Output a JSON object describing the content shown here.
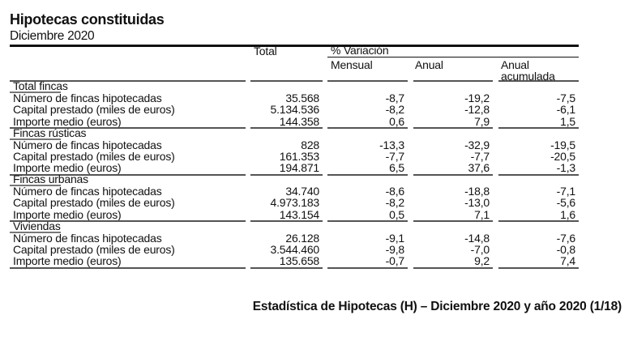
{
  "title": "Hipotecas constituidas",
  "subtitle": "Diciembre 2020",
  "headers": {
    "total": "Total",
    "variacion": "% Variación",
    "mensual": "Mensual",
    "anual": "Anual",
    "anual_acumulada_1": "Anual",
    "anual_acumulada_2": "acumulada"
  },
  "sections": [
    {
      "name": "Total fincas",
      "rows": [
        {
          "label": "Número de fincas hipotecadas",
          "total": "35.568",
          "mensual": "-8,7",
          "anual": "-19,2",
          "acumulada": "-7,5"
        },
        {
          "label": "Capital prestado (miles de euros)",
          "total": "5.134.536",
          "mensual": "-8,2",
          "anual": "-12,8",
          "acumulada": "-6,1"
        },
        {
          "label": "Importe medio (euros)",
          "total": "144.358",
          "mensual": "0,6",
          "anual": "7,9",
          "acumulada": "1,5"
        }
      ]
    },
    {
      "name": "Fincas rústicas",
      "rows": [
        {
          "label": "Número de fincas hipotecadas",
          "total": "828",
          "mensual": "-13,3",
          "anual": "-32,9",
          "acumulada": "-19,5"
        },
        {
          "label": "Capital prestado (miles de euros)",
          "total": "161.353",
          "mensual": "-7,7",
          "anual": "-7,7",
          "acumulada": "-20,5"
        },
        {
          "label": "Importe medio (euros)",
          "total": "194.871",
          "mensual": "6,5",
          "anual": "37,6",
          "acumulada": "-1,3"
        }
      ]
    },
    {
      "name": "Fincas urbanas",
      "rows": [
        {
          "label": "Número de fincas hipotecadas",
          "total": "34.740",
          "mensual": "-8,6",
          "anual": "-18,8",
          "acumulada": "-7,1"
        },
        {
          "label": "Capital prestado (miles de euros)",
          "total": "4.973.183",
          "mensual": "-8,2",
          "anual": "-13,0",
          "acumulada": "-5,6"
        },
        {
          "label": "Importe medio (euros)",
          "total": "143.154",
          "mensual": "0,5",
          "anual": "7,1",
          "acumulada": "1,6"
        }
      ]
    },
    {
      "name": "Viviendas",
      "rows": [
        {
          "label": "Número de fincas hipotecadas",
          "total": "26.128",
          "mensual": "-9,1",
          "anual": "-14,8",
          "acumulada": "-7,6"
        },
        {
          "label": "Capital prestado (miles de euros)",
          "total": "3.544.460",
          "mensual": "-9,8",
          "anual": "-7,0",
          "acumulada": "-0,8"
        },
        {
          "label": "Importe medio (euros)",
          "total": "135.658",
          "mensual": "-0,7",
          "anual": "9,2",
          "acumulada": "7,4"
        }
      ]
    }
  ],
  "footer": "Estadística de Hipotecas (H) – Diciembre 2020 y año 2020 (1/18)"
}
